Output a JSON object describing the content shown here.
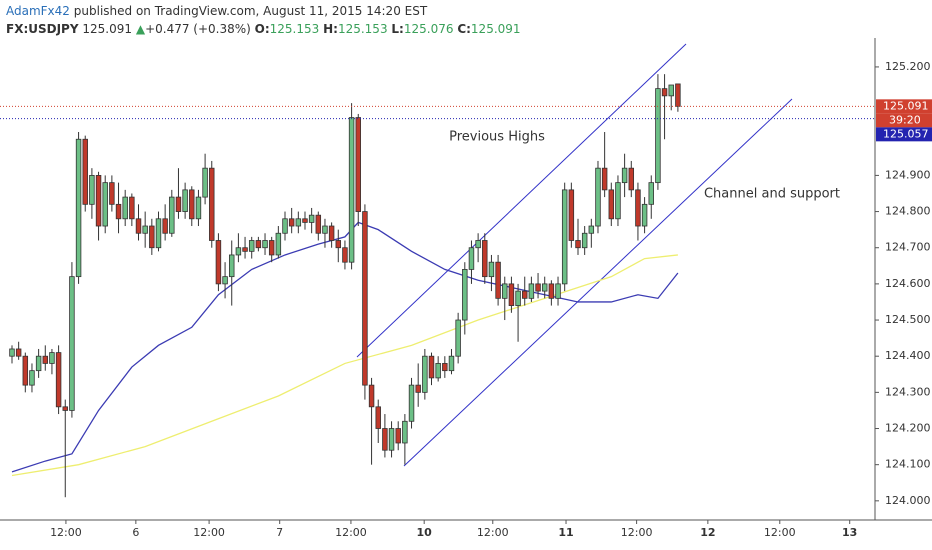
{
  "header": {
    "author": "AdamFx42",
    "published": "published on TradingView.com, August 11, 2015 14:20 EST",
    "symbol": "FX:USDJPY",
    "last": "125.091",
    "arrow": "▲",
    "change": "+0.477 (+0.38%)",
    "o_label": "O:",
    "o": "125.153",
    "h_label": "H:",
    "h": "125.153",
    "l_label": "L:",
    "l": "125.076",
    "c_label": "C:",
    "c": "125.091"
  },
  "chart_data": {
    "type": "candlestick",
    "up_color": "#6cbf86",
    "down_color": "#c0392b",
    "candles": [
      [
        124.4,
        124.43,
        124.38,
        124.42
      ],
      [
        124.42,
        124.44,
        124.39,
        124.4
      ],
      [
        124.4,
        124.41,
        124.3,
        124.32
      ],
      [
        124.32,
        124.38,
        124.3,
        124.36
      ],
      [
        124.36,
        124.42,
        124.34,
        124.4
      ],
      [
        124.4,
        124.43,
        124.36,
        124.38
      ],
      [
        124.38,
        124.42,
        124.35,
        124.41
      ],
      [
        124.41,
        124.43,
        124.24,
        124.26
      ],
      [
        124.26,
        124.28,
        124.01,
        124.25
      ],
      [
        124.25,
        124.66,
        124.23,
        124.62
      ],
      [
        124.62,
        125.02,
        124.6,
        125.0
      ],
      [
        125.0,
        125.01,
        124.8,
        124.82
      ],
      [
        124.82,
        124.92,
        124.78,
        124.9
      ],
      [
        124.9,
        124.91,
        124.72,
        124.76
      ],
      [
        124.76,
        124.9,
        124.74,
        124.88
      ],
      [
        124.88,
        124.9,
        124.8,
        124.82
      ],
      [
        124.82,
        124.88,
        124.74,
        124.78
      ],
      [
        124.78,
        124.86,
        124.76,
        124.84
      ],
      [
        124.84,
        124.85,
        124.76,
        124.78
      ],
      [
        124.78,
        124.82,
        124.72,
        124.74
      ],
      [
        124.74,
        124.8,
        124.7,
        124.76
      ],
      [
        124.76,
        124.78,
        124.68,
        124.7
      ],
      [
        124.7,
        124.8,
        124.69,
        124.78
      ],
      [
        124.78,
        124.82,
        124.72,
        124.74
      ],
      [
        124.74,
        124.86,
        124.73,
        124.84
      ],
      [
        124.84,
        124.92,
        124.78,
        124.8
      ],
      [
        124.8,
        124.88,
        124.78,
        124.86
      ],
      [
        124.86,
        124.87,
        124.76,
        124.78
      ],
      [
        124.78,
        124.86,
        124.76,
        124.84
      ],
      [
        124.84,
        124.96,
        124.82,
        124.92
      ],
      [
        124.92,
        124.94,
        124.7,
        124.72
      ],
      [
        124.72,
        124.74,
        124.58,
        124.6
      ],
      [
        124.6,
        124.66,
        124.56,
        124.62
      ],
      [
        124.62,
        124.72,
        124.54,
        124.68
      ],
      [
        124.68,
        124.74,
        124.66,
        124.7
      ],
      [
        124.7,
        124.73,
        124.67,
        124.69
      ],
      [
        124.69,
        124.73,
        124.67,
        124.72
      ],
      [
        124.72,
        124.73,
        124.69,
        124.7
      ],
      [
        124.7,
        124.74,
        124.68,
        124.72
      ],
      [
        124.72,
        124.73,
        124.66,
        124.68
      ],
      [
        124.68,
        124.76,
        124.67,
        124.74
      ],
      [
        124.74,
        124.8,
        124.72,
        124.78
      ],
      [
        124.78,
        124.81,
        124.74,
        124.76
      ],
      [
        124.76,
        124.8,
        124.74,
        124.78
      ],
      [
        124.78,
        124.8,
        124.75,
        124.77
      ],
      [
        124.77,
        124.81,
        124.74,
        124.79
      ],
      [
        124.79,
        124.8,
        124.72,
        124.74
      ],
      [
        124.74,
        124.78,
        124.7,
        124.76
      ],
      [
        124.76,
        124.77,
        124.7,
        124.72
      ],
      [
        124.72,
        124.75,
        124.66,
        124.7
      ],
      [
        124.7,
        124.72,
        124.64,
        124.66
      ],
      [
        124.66,
        125.1,
        124.64,
        125.06
      ],
      [
        125.06,
        125.07,
        124.76,
        124.8
      ],
      [
        124.8,
        124.82,
        124.28,
        124.32
      ],
      [
        124.32,
        124.34,
        124.1,
        124.26
      ],
      [
        124.26,
        124.28,
        124.16,
        124.2
      ],
      [
        124.2,
        124.24,
        124.12,
        124.14
      ],
      [
        124.14,
        124.22,
        124.12,
        124.2
      ],
      [
        124.2,
        124.22,
        124.14,
        124.16
      ],
      [
        124.16,
        124.24,
        124.1,
        124.22
      ],
      [
        124.22,
        124.34,
        124.2,
        124.32
      ],
      [
        124.32,
        124.38,
        124.26,
        124.3
      ],
      [
        124.3,
        124.42,
        124.28,
        124.4
      ],
      [
        124.4,
        124.41,
        124.32,
        124.34
      ],
      [
        124.34,
        124.4,
        124.33,
        124.38
      ],
      [
        124.38,
        124.4,
        124.34,
        124.36
      ],
      [
        124.36,
        124.42,
        124.35,
        124.4
      ],
      [
        124.4,
        124.52,
        124.38,
        124.5
      ],
      [
        124.5,
        124.66,
        124.46,
        124.64
      ],
      [
        124.64,
        124.72,
        124.6,
        124.7
      ],
      [
        124.7,
        124.74,
        124.66,
        124.72
      ],
      [
        124.72,
        124.74,
        124.6,
        124.62
      ],
      [
        124.62,
        124.68,
        124.58,
        124.66
      ],
      [
        124.66,
        124.68,
        124.54,
        124.56
      ],
      [
        124.56,
        124.62,
        124.5,
        124.6
      ],
      [
        124.6,
        124.62,
        124.52,
        124.54
      ],
      [
        124.54,
        124.6,
        124.44,
        124.58
      ],
      [
        124.58,
        124.62,
        124.54,
        124.56
      ],
      [
        124.56,
        124.62,
        124.55,
        124.6
      ],
      [
        124.6,
        124.63,
        124.56,
        124.58
      ],
      [
        124.58,
        124.62,
        124.56,
        124.6
      ],
      [
        124.6,
        124.61,
        124.54,
        124.56
      ],
      [
        124.56,
        124.62,
        124.54,
        124.6
      ],
      [
        124.6,
        124.88,
        124.58,
        124.86
      ],
      [
        124.86,
        124.88,
        124.7,
        124.72
      ],
      [
        124.72,
        124.78,
        124.68,
        124.7
      ],
      [
        124.7,
        124.76,
        124.68,
        124.74
      ],
      [
        124.74,
        124.78,
        124.7,
        124.76
      ],
      [
        124.76,
        124.94,
        124.74,
        124.92
      ],
      [
        124.92,
        125.02,
        124.84,
        124.86
      ],
      [
        124.86,
        124.88,
        124.76,
        124.78
      ],
      [
        124.78,
        124.9,
        124.76,
        124.88
      ],
      [
        124.88,
        124.96,
        124.84,
        124.92
      ],
      [
        124.92,
        124.94,
        124.84,
        124.86
      ],
      [
        124.86,
        124.88,
        124.72,
        124.76
      ],
      [
        124.76,
        124.84,
        124.74,
        124.82
      ],
      [
        124.82,
        124.9,
        124.78,
        124.88
      ],
      [
        124.88,
        125.18,
        124.86,
        125.14
      ],
      [
        125.14,
        125.18,
        125.0,
        125.12
      ],
      [
        125.12,
        125.15,
        125.08,
        125.15
      ],
      [
        125.153,
        125.153,
        125.076,
        125.091
      ]
    ],
    "series": [
      {
        "color": "#3b3bb3",
        "x": [
          0,
          5,
          9,
          13,
          18,
          22,
          27,
          31,
          36,
          41,
          46,
          50,
          52,
          55,
          60,
          65,
          70,
          75,
          80,
          85,
          90,
          94,
          97,
          100
        ],
        "values": [
          124.08,
          124.11,
          124.13,
          124.25,
          124.37,
          124.43,
          124.48,
          124.57,
          124.64,
          124.68,
          124.71,
          124.73,
          124.77,
          124.75,
          124.69,
          124.64,
          124.61,
          124.59,
          124.57,
          124.55,
          124.55,
          124.57,
          124.56,
          124.63
        ]
      },
      {
        "color": "#eeee70",
        "x": [
          0,
          10,
          20,
          30,
          40,
          50,
          60,
          70,
          80,
          90,
          95,
          100
        ],
        "values": [
          124.07,
          124.1,
          124.15,
          124.22,
          124.29,
          124.38,
          124.43,
          124.5,
          124.56,
          124.62,
          124.67,
          124.68
        ]
      }
    ],
    "price_lines": [
      {
        "value": 125.091,
        "label": "125.091",
        "color": "#d0402f"
      },
      {
        "value": 125.057,
        "label": "125.057",
        "color": "#2323b0"
      }
    ],
    "countdown": "39:20",
    "annotations": [
      "Previous Highs",
      "Channel and support"
    ],
    "ylim": [
      123.947,
      125.28
    ],
    "yticks": [
      {
        "value": 124.0,
        "label": "124.000"
      },
      {
        "value": 124.1,
        "label": "124.100"
      },
      {
        "value": 124.2,
        "label": "124.200"
      },
      {
        "value": 124.3,
        "label": "124.300"
      },
      {
        "value": 124.4,
        "label": "124.400"
      },
      {
        "value": 124.5,
        "label": "124.500"
      },
      {
        "value": 124.6,
        "label": "124.600"
      },
      {
        "value": 124.7,
        "label": "124.700"
      },
      {
        "value": 124.8,
        "label": "124.800"
      },
      {
        "value": 124.9,
        "label": "124.900"
      },
      {
        "value": 125.2,
        "label": "125.200"
      }
    ],
    "xlim": [
      -1.8,
      129.6
    ],
    "xticks": [
      {
        "value": 8.1,
        "label": "12:00"
      },
      {
        "value": 18.6,
        "label": "6"
      },
      {
        "value": 29.6,
        "label": "12:00"
      },
      {
        "value": 40.2,
        "label": "7"
      },
      {
        "value": 50.9,
        "label": "12:00"
      },
      {
        "value": 61.9,
        "label": "10"
      },
      {
        "value": 72.2,
        "label": "12:00"
      },
      {
        "value": 83.2,
        "label": "11"
      },
      {
        "value": 93.8,
        "label": "12:00"
      },
      {
        "value": 104.5,
        "label": "12"
      },
      {
        "value": 115.3,
        "label": "12:00"
      },
      {
        "value": 125.8,
        "label": "13"
      }
    ]
  }
}
